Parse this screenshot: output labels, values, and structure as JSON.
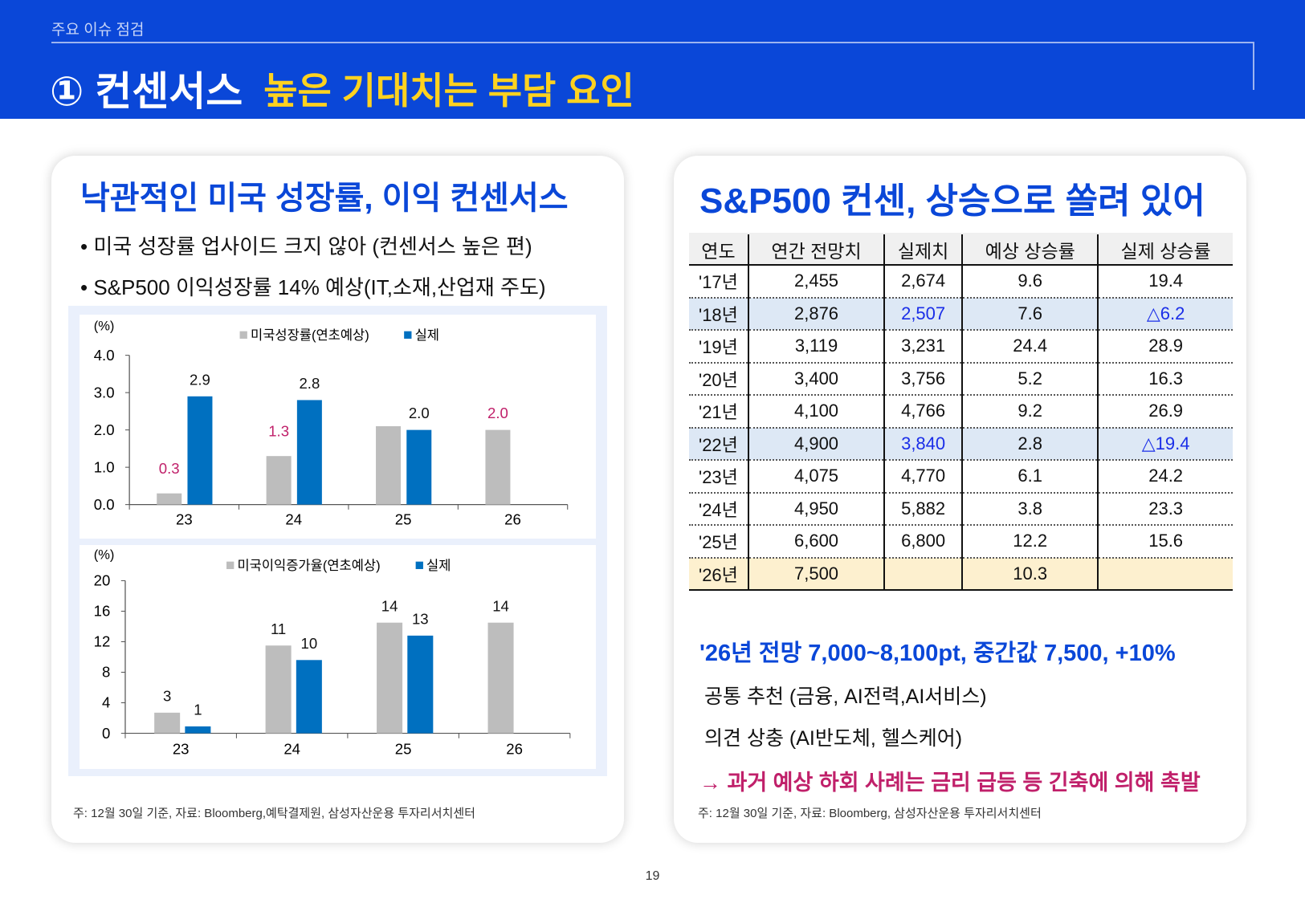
{
  "header": {
    "section": "주요 이슈 점검",
    "title_main": "① 컨센서스",
    "title_sub": "높은 기대치는 부담 요인"
  },
  "left": {
    "title": "낙관적인 미국 성장률, 이익 컨센서스",
    "bullets": [
      "• 미국 성장률 업사이드 크지 않아 (컨센서스 높은 편)",
      "• S&P500 이익성장률 14% 예상(IT,소재,산업재 주도)"
    ],
    "note": "주: 12월 30일 기준, 자료: Bloomberg,예탁결제원,  삼성자산운용 투자리서치센터"
  },
  "chart_data": [
    {
      "type": "bar",
      "ylabel": "(%)",
      "ylim": [
        0,
        4
      ],
      "yticks": [
        "0.0",
        "1.0",
        "2.0",
        "3.0",
        "4.0"
      ],
      "categories": [
        "23",
        "24",
        "25",
        "26"
      ],
      "series": [
        {
          "name": "미국성장률(연초예상)",
          "color": "#bdbdbd",
          "values": [
            0.3,
            1.3,
            2.1,
            2.0
          ],
          "labels": [
            "0.3",
            "1.3",
            null,
            "2.0"
          ],
          "label_color": "#c0206a"
        },
        {
          "name": "실제",
          "color": "#0070c0",
          "values": [
            2.9,
            2.8,
            2.0,
            null
          ],
          "labels": [
            "2.9",
            "2.8",
            "2.0",
            null
          ],
          "label_color": "#111"
        }
      ]
    },
    {
      "type": "bar",
      "ylabel": "(%)",
      "ylim": [
        0,
        20
      ],
      "yticks": [
        "0",
        "4",
        "8",
        "12",
        "16",
        "20"
      ],
      "categories": [
        "23",
        "24",
        "25",
        "26"
      ],
      "series": [
        {
          "name": "미국이익증가율(연초예상)",
          "color": "#bdbdbd",
          "values": [
            2.7,
            11.5,
            14.5,
            14.5
          ],
          "labels": [
            "3",
            "11",
            "14",
            "14"
          ],
          "label_color": "#111"
        },
        {
          "name": "실제",
          "color": "#0070c0",
          "values": [
            0.9,
            9.6,
            12.8,
            null
          ],
          "labels": [
            "1",
            "10",
            "13",
            null
          ],
          "label_color": "#111"
        }
      ]
    }
  ],
  "right": {
    "title": "S&P500 컨센, 상승으로 쏠려 있어",
    "table": {
      "headers": [
        "연도",
        "연간 전망치",
        "실제치",
        "예상 상승률",
        "실제 상승률"
      ],
      "rows": [
        [
          "'17년",
          "2,455",
          "2,674",
          "9.6",
          "19.4"
        ],
        [
          "'18년",
          "2,876",
          "2,507",
          "7.6",
          "△6.2"
        ],
        [
          "'19년",
          "3,119",
          "3,231",
          "24.4",
          "28.9"
        ],
        [
          "'20년",
          "3,400",
          "3,756",
          "5.2",
          "16.3"
        ],
        [
          "'21년",
          "4,100",
          "4,766",
          "9.2",
          "26.9"
        ],
        [
          "'22년",
          "4,900",
          "3,840",
          "2.8",
          "△19.4"
        ],
        [
          "'23년",
          "4,075",
          "4,770",
          "6.1",
          "24.2"
        ],
        [
          "'24년",
          "4,950",
          "5,882",
          "3.8",
          "23.3"
        ],
        [
          "'25년",
          "6,600",
          "6,800",
          "12.2",
          "15.6"
        ],
        [
          "'26년",
          "7,500",
          "",
          "10.3",
          ""
        ]
      ]
    },
    "highlight": "'26년 전망 7,000~8,100pt, 중간값 7,500, +10%",
    "line1": "공통 추천 (금융, AI전력,AI서비스)",
    "line2": "의견 상충 (AI반도체, 헬스케어)",
    "conclusion": "→ 과거 예상 하회 사례는 금리 급등 등 긴축에 의해 촉발",
    "note": "주: 12월 30일 기준, 자료: Bloomberg, 삼성자산운용 투자리서치센터"
  },
  "page_number": "19",
  "colors": {
    "brand": "#0a47d8",
    "title_accent": "#ffd21f",
    "negative": "#1a2ee8",
    "magenta": "#c0206a"
  }
}
